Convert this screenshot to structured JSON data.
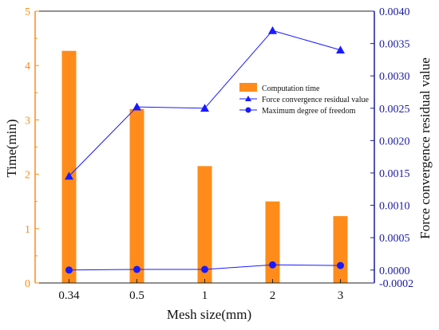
{
  "chart_data": {
    "type": "bar",
    "categories": [
      "0.34",
      "0.5",
      "1",
      "2",
      "3"
    ],
    "xlabel": "Mesh size(mm)",
    "ylabel_left": "Time(min)",
    "ylabel_right": "Force convergence residual value",
    "ylim_left": [
      0,
      5
    ],
    "yticks_left": [
      "0",
      "1",
      "2",
      "3",
      "4",
      "5"
    ],
    "ylim_right": [
      -0.0002,
      0.004
    ],
    "yticks_right": [
      "-0.0002",
      "0.0000",
      "0.0005",
      "0.0010",
      "0.0015",
      "0.0020",
      "0.0025",
      "0.0030",
      "0.0035",
      "0.0040"
    ],
    "grid": false,
    "legend_position": "center-right",
    "legend": [
      "Computation time",
      "Force convergence residual value",
      "Maximum degree of freedom"
    ],
    "series": [
      {
        "name": "Computation time",
        "type": "bar",
        "axis": "left",
        "values": [
          4.27,
          3.2,
          2.15,
          1.5,
          1.23
        ],
        "color": "#ff8c1a"
      },
      {
        "name": "Force convergence residual value",
        "type": "line",
        "marker": "triangle",
        "axis": "right",
        "values": [
          0.00145,
          0.00252,
          0.0025,
          0.0037,
          0.0034
        ],
        "color": "#1a1aff"
      },
      {
        "name": "Maximum degree of freedom",
        "type": "line",
        "marker": "circle",
        "axis": "right",
        "values": [
          0.0,
          1e-05,
          1e-05,
          8e-05,
          7e-05
        ],
        "color": "#1a1aff"
      }
    ],
    "axis_colors": {
      "left": "#ff8c1a",
      "right": "#1a1aa0",
      "frame": "#222222"
    }
  }
}
